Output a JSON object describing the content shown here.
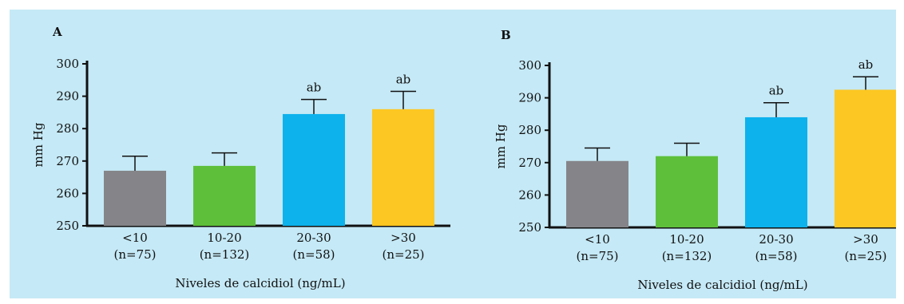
{
  "chart_data": [
    {
      "panel": "A",
      "type": "bar",
      "categories": [
        "<10",
        "10-20",
        "20-30",
        ">30"
      ],
      "category_sublabels": [
        "(n=75)",
        "(n=132)",
        "(n=58)",
        "(n=25)"
      ],
      "values": [
        267,
        268.5,
        284.5,
        286
      ],
      "error": [
        4.5,
        4,
        4.5,
        5.5
      ],
      "annotations": [
        "",
        "",
        "ab",
        "ab"
      ],
      "colors": [
        "#858589",
        "#5ec03a",
        "#0db2ec",
        "#fcc722"
      ],
      "ylabel": "mm Hg",
      "xlabel": "Niveles de calcidiol (ng/mL)",
      "ylim": [
        250,
        300
      ],
      "yticks": [
        250,
        260,
        270,
        280,
        290,
        300
      ],
      "grid": false
    },
    {
      "panel": "B",
      "type": "bar",
      "categories": [
        "<10",
        "10-20",
        "20-30",
        ">30"
      ],
      "category_sublabels": [
        "(n=75)",
        "(n=132)",
        "(n=58)",
        "(n=25)"
      ],
      "values": [
        270.5,
        272,
        284,
        292.5
      ],
      "error": [
        4,
        4,
        4.5,
        4
      ],
      "annotations": [
        "",
        "",
        "ab",
        "ab"
      ],
      "colors": [
        "#858589",
        "#5ec03a",
        "#0db2ec",
        "#fcc722"
      ],
      "ylabel": "mm Hg",
      "xlabel": "Niveles de calcidiol (ng/mL)",
      "ylim": [
        250,
        300
      ],
      "yticks": [
        250,
        260,
        270,
        280,
        290,
        300
      ],
      "grid": false
    }
  ]
}
